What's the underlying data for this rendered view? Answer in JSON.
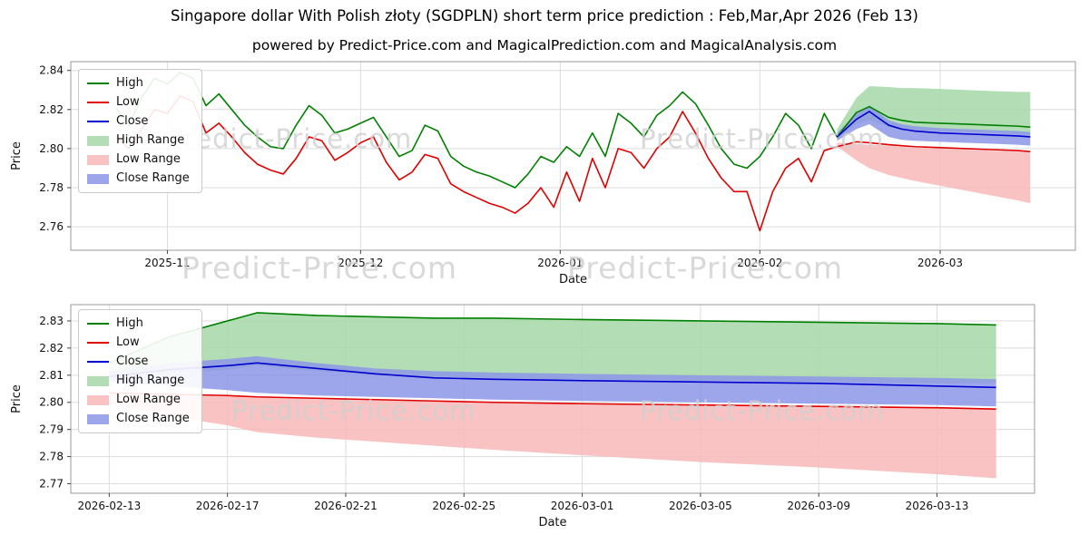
{
  "page": {
    "title": "Singapore dollar With Polish złoty (SGDPLN) short term price prediction : Feb,Mar,Apr 2026 (Feb 13)",
    "subtitle": "powered by Predict-Price.com and MagicalPrediction.com and MagicalAnalysis.com",
    "watermark": "Predict-Price.com"
  },
  "colors": {
    "high": "#008000",
    "low": "#e00000",
    "close": "#0000cd",
    "high_range": "#a6d8a8",
    "low_range": "#f8b9b9",
    "close_range": "#8d96e8",
    "grid": "#dcdcdc",
    "frame": "#9a9a9a",
    "tick": "#444444",
    "text": "#111111",
    "watermark": "#d0d0d0"
  },
  "legend": [
    {
      "label": "High",
      "type": "line",
      "color_key": "high"
    },
    {
      "label": "Low",
      "type": "line",
      "color_key": "low"
    },
    {
      "label": "Close",
      "type": "line",
      "color_key": "close"
    },
    {
      "label": "High Range",
      "type": "patch",
      "color_key": "high_range"
    },
    {
      "label": "Low Range",
      "type": "patch",
      "color_key": "low_range"
    },
    {
      "label": "Close Range",
      "type": "patch",
      "color_key": "close_range"
    }
  ],
  "chart_data": [
    {
      "name": "history-and-short-term-forecast",
      "type": "line",
      "title": "",
      "xlabel": "Date",
      "ylabel": "Price",
      "x_unit": "days since 2025-10-24",
      "xlim": [
        -7,
        149
      ],
      "ylim": [
        2.748,
        2.8445
      ],
      "grid": true,
      "legend_position": "upper-left",
      "yticks": [
        2.76,
        2.78,
        2.8,
        2.82,
        2.84
      ],
      "xticks": [
        {
          "pos": 8,
          "label": "2025-11"
        },
        {
          "pos": 38,
          "label": "2025-12"
        },
        {
          "pos": 69,
          "label": "2026-01"
        },
        {
          "pos": 100,
          "label": "2026-02"
        },
        {
          "pos": 128,
          "label": "2026-03"
        }
      ],
      "series": [
        {
          "name": "High",
          "color_key": "high",
          "x": [
            0,
            2,
            4,
            6,
            8,
            10,
            12,
            14,
            16,
            18,
            20,
            22,
            24,
            26,
            28,
            30,
            32,
            34,
            36,
            38,
            40,
            42,
            44,
            46,
            48,
            50,
            52,
            54,
            56,
            58,
            60,
            62,
            64,
            66,
            68,
            70,
            72,
            74,
            76,
            78,
            80,
            82,
            84,
            86,
            88,
            90,
            92,
            94,
            96,
            98,
            100,
            102,
            104,
            106,
            108,
            110,
            112,
            115,
            117,
            120,
            122,
            124,
            128,
            132,
            136,
            140,
            142
          ],
          "y": [
            2.821,
            2.812,
            2.826,
            2.836,
            2.833,
            2.839,
            2.836,
            2.822,
            2.828,
            2.82,
            2.812,
            2.806,
            2.801,
            2.8,
            2.812,
            2.822,
            2.817,
            2.808,
            2.81,
            2.813,
            2.816,
            2.806,
            2.796,
            2.799,
            2.812,
            2.809,
            2.796,
            2.791,
            2.788,
            2.786,
            2.783,
            2.78,
            2.787,
            2.796,
            2.793,
            2.801,
            2.796,
            2.808,
            2.796,
            2.818,
            2.813,
            2.806,
            2.817,
            2.822,
            2.829,
            2.823,
            2.812,
            2.8,
            2.792,
            2.79,
            2.796,
            2.806,
            2.818,
            2.812,
            2.8,
            2.818,
            2.806,
            2.8185,
            2.8215,
            2.816,
            2.8145,
            2.8135,
            2.813,
            2.8125,
            2.812,
            2.8115,
            2.811
          ]
        },
        {
          "name": "Low",
          "color_key": "low",
          "x": [
            0,
            2,
            4,
            6,
            8,
            10,
            12,
            14,
            16,
            18,
            20,
            22,
            24,
            26,
            28,
            30,
            32,
            34,
            36,
            38,
            40,
            42,
            44,
            46,
            48,
            50,
            52,
            54,
            56,
            58,
            60,
            62,
            64,
            66,
            68,
            70,
            72,
            74,
            76,
            78,
            80,
            82,
            84,
            86,
            88,
            90,
            92,
            94,
            96,
            98,
            100,
            102,
            104,
            106,
            108,
            110,
            112,
            115,
            117,
            120,
            122,
            124,
            128,
            132,
            136,
            140,
            142
          ],
          "y": [
            2.806,
            2.8,
            2.81,
            2.82,
            2.818,
            2.827,
            2.824,
            2.808,
            2.813,
            2.806,
            2.798,
            2.792,
            2.789,
            2.787,
            2.795,
            2.806,
            2.804,
            2.794,
            2.798,
            2.803,
            2.806,
            2.793,
            2.784,
            2.788,
            2.797,
            2.795,
            2.782,
            2.778,
            2.775,
            2.772,
            2.77,
            2.767,
            2.772,
            2.78,
            2.77,
            2.788,
            2.773,
            2.795,
            2.78,
            2.8,
            2.798,
            2.79,
            2.8,
            2.806,
            2.819,
            2.808,
            2.795,
            2.785,
            2.778,
            2.778,
            2.758,
            2.778,
            2.79,
            2.795,
            2.783,
            2.799,
            2.801,
            2.8035,
            2.803,
            2.802,
            2.8015,
            2.801,
            2.8005,
            2.8,
            2.7995,
            2.799,
            2.7985
          ]
        },
        {
          "name": "Close",
          "color_key": "close",
          "x": [
            112,
            115,
            117,
            120,
            122,
            124,
            128,
            132,
            136,
            140,
            142
          ],
          "y": [
            2.806,
            2.815,
            2.819,
            2.812,
            2.81,
            2.809,
            2.808,
            2.8075,
            2.807,
            2.8065,
            2.806
          ]
        }
      ],
      "bands": [
        {
          "name": "High Range",
          "color_key": "high_range",
          "x": [
            112,
            115,
            117,
            120,
            122,
            124,
            128,
            132,
            136,
            140,
            142
          ],
          "upper": [
            2.81,
            2.826,
            2.832,
            2.8315,
            2.831,
            2.831,
            2.8305,
            2.83,
            2.8295,
            2.829,
            2.829
          ],
          "lower": [
            2.806,
            2.8125,
            2.8145,
            2.811,
            2.81,
            2.8095,
            2.809,
            2.8085,
            2.808,
            2.8075,
            2.807
          ]
        },
        {
          "name": "Low Range",
          "color_key": "low_range",
          "x": [
            112,
            115,
            117,
            120,
            122,
            124,
            128,
            132,
            136,
            140,
            142
          ],
          "upper": [
            2.803,
            2.8025,
            2.802,
            2.8015,
            2.801,
            2.8005,
            2.8,
            2.7995,
            2.799,
            2.7985,
            2.798
          ],
          "lower": [
            2.801,
            2.794,
            2.79,
            2.7865,
            2.785,
            2.7835,
            2.781,
            2.7785,
            2.776,
            2.7735,
            2.772
          ]
        },
        {
          "name": "Close Range",
          "color_key": "close_range",
          "x": [
            112,
            115,
            117,
            120,
            122,
            124,
            128,
            132,
            136,
            140,
            142
          ],
          "upper": [
            2.808,
            2.818,
            2.822,
            2.8145,
            2.8125,
            2.8115,
            2.8105,
            2.81,
            2.8095,
            2.809,
            2.8085
          ],
          "lower": [
            2.804,
            2.81,
            2.8125,
            2.806,
            2.8045,
            2.804,
            2.8035,
            2.803,
            2.8025,
            2.802,
            2.8015
          ]
        }
      ]
    },
    {
      "name": "forecast-detail",
      "type": "line",
      "title": "",
      "xlabel": "Date",
      "ylabel": "Price",
      "x_unit": "days since 2026-02-13",
      "xlim": [
        -1.3,
        31.3
      ],
      "ylim": [
        2.7665,
        2.836
      ],
      "grid": true,
      "legend_position": "upper-left",
      "yticks": [
        2.77,
        2.78,
        2.79,
        2.8,
        2.81,
        2.82,
        2.83
      ],
      "xticks": [
        {
          "pos": 0,
          "label": "2026-02-13"
        },
        {
          "pos": 4,
          "label": "2026-02-17"
        },
        {
          "pos": 8,
          "label": "2026-02-21"
        },
        {
          "pos": 12,
          "label": "2026-02-25"
        },
        {
          "pos": 16,
          "label": "2026-03-01"
        },
        {
          "pos": 20,
          "label": "2026-03-05"
        },
        {
          "pos": 24,
          "label": "2026-03-09"
        },
        {
          "pos": 28,
          "label": "2026-03-13"
        }
      ],
      "series": [
        {
          "name": "High",
          "color_key": "high",
          "x": [
            0,
            2,
            4,
            5,
            7,
            9,
            11,
            13,
            16,
            20,
            24,
            28,
            30
          ],
          "y": [
            2.8145,
            2.824,
            2.83,
            2.833,
            2.832,
            2.8315,
            2.831,
            2.831,
            2.8305,
            2.83,
            2.8295,
            2.829,
            2.8285
          ]
        },
        {
          "name": "Low",
          "color_key": "low",
          "x": [
            0,
            2,
            4,
            5,
            7,
            9,
            11,
            13,
            16,
            20,
            24,
            28,
            30
          ],
          "y": [
            2.8035,
            2.803,
            2.8025,
            2.802,
            2.8015,
            2.801,
            2.8005,
            2.8,
            2.7995,
            2.799,
            2.7985,
            2.798,
            2.7975
          ]
        },
        {
          "name": "Close",
          "color_key": "close",
          "x": [
            0,
            2,
            4,
            5,
            7,
            9,
            11,
            13,
            16,
            20,
            24,
            28,
            30
          ],
          "y": [
            2.8095,
            2.812,
            2.8135,
            2.8145,
            2.8125,
            2.8105,
            2.809,
            2.8085,
            2.808,
            2.8075,
            2.807,
            2.806,
            2.8055
          ]
        }
      ],
      "bands": [
        {
          "name": "High Range",
          "color_key": "high_range",
          "x": [
            0,
            2,
            4,
            5,
            7,
            9,
            11,
            13,
            16,
            20,
            24,
            28,
            30
          ],
          "upper": [
            2.8145,
            2.824,
            2.83,
            2.833,
            2.832,
            2.8315,
            2.831,
            2.831,
            2.8305,
            2.83,
            2.8295,
            2.829,
            2.8285
          ],
          "lower": [
            2.808,
            2.8105,
            2.812,
            2.8135,
            2.8115,
            2.81,
            2.8095,
            2.809,
            2.8085,
            2.808,
            2.8075,
            2.807,
            2.807
          ]
        },
        {
          "name": "Low Range",
          "color_key": "low_range",
          "x": [
            0,
            2,
            4,
            5,
            7,
            9,
            11,
            13,
            16,
            20,
            24,
            28,
            30
          ],
          "upper": [
            2.8035,
            2.803,
            2.8025,
            2.802,
            2.8015,
            2.801,
            2.8005,
            2.8,
            2.7995,
            2.799,
            2.7985,
            2.798,
            2.7975
          ],
          "lower": [
            2.7995,
            2.795,
            2.7915,
            2.789,
            2.787,
            2.7855,
            2.784,
            2.7825,
            2.7805,
            2.778,
            2.776,
            2.7735,
            2.772
          ]
        },
        {
          "name": "Close Range",
          "color_key": "close_range",
          "x": [
            0,
            2,
            4,
            5,
            7,
            9,
            11,
            13,
            16,
            20,
            24,
            28,
            30
          ],
          "upper": [
            2.8115,
            2.8145,
            2.816,
            2.817,
            2.8145,
            2.8125,
            2.8115,
            2.811,
            2.8105,
            2.81,
            2.8095,
            2.809,
            2.8085
          ],
          "lower": [
            2.8075,
            2.806,
            2.8045,
            2.8035,
            2.8025,
            2.802,
            2.8015,
            2.801,
            2.8005,
            2.8,
            2.7995,
            2.799,
            2.7985
          ]
        }
      ]
    }
  ]
}
